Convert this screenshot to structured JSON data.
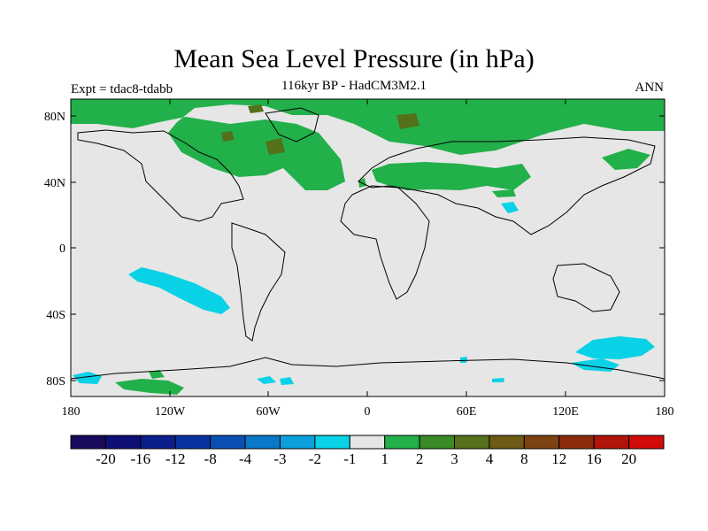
{
  "header": {
    "title": "Mean Sea Level Pressure (in hPa)",
    "subtitle": "116kyr BP - HadCM3M2.1",
    "experiment": "Expt = tdac8-tdabb",
    "season": "ANN"
  },
  "axes": {
    "lat_labels": [
      "80N",
      "40N",
      "0",
      "40S",
      "80S"
    ],
    "lon_labels": [
      "180",
      "120W",
      "60W",
      "0",
      "60E",
      "120E",
      "180"
    ]
  },
  "colorbar": {
    "colors": [
      "#1a0a5e",
      "#0f0f78",
      "#0a1e8c",
      "#0a32a0",
      "#0a50b4",
      "#0a78c8",
      "#0aa0dc",
      "#0ad2e6",
      "#e6e6e6",
      "#22b04a",
      "#3a8a26",
      "#55701a",
      "#6e5a14",
      "#7c4210",
      "#8c2a0c",
      "#b0140a",
      "#d20a0a"
    ],
    "labels": [
      "-20",
      "-16",
      "-12",
      "-8",
      "-4",
      "-3",
      "-2",
      "-1",
      "1",
      "2",
      "3",
      "4",
      "8",
      "12",
      "16",
      "20"
    ]
  },
  "map": {
    "background_color": "#e6e6e6",
    "positive_color": "#22b04a",
    "strong_positive_color": "#55701a",
    "negative_color": "#0ad2e6"
  }
}
